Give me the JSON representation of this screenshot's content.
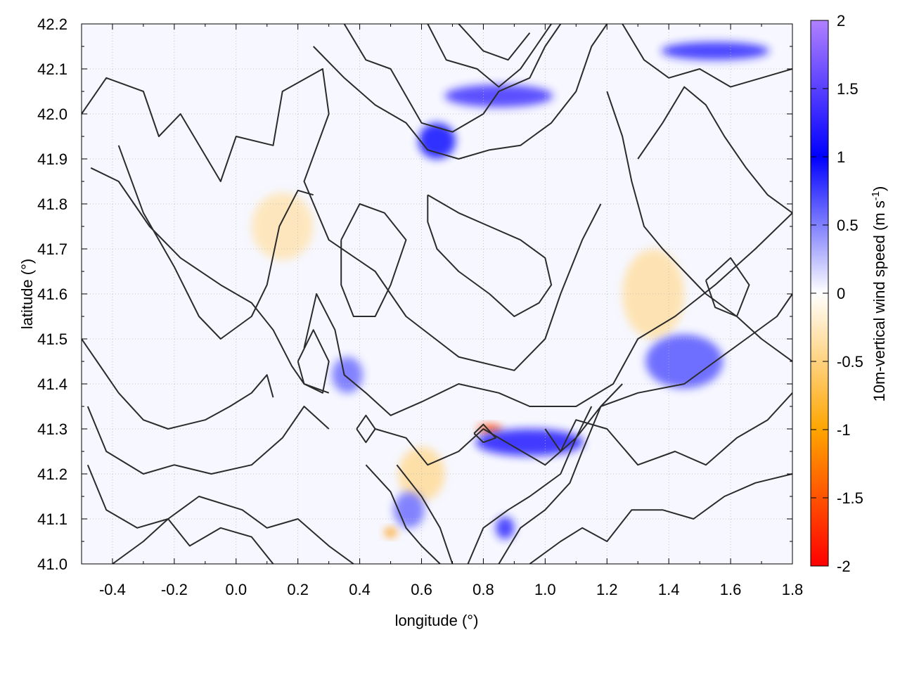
{
  "chart_data": {
    "type": "heatmap",
    "title": "",
    "xlabel": "longitude (°)",
    "ylabel": "latitude (°)",
    "xlim": [
      -0.5,
      1.8
    ],
    "ylim": [
      41.0,
      42.2
    ],
    "x_ticks": [
      "-0.4",
      "-0.2",
      "0.0",
      "0.2",
      "0.4",
      "0.6",
      "0.8",
      "1.0",
      "1.2",
      "1.4",
      "1.6",
      "1.8"
    ],
    "y_ticks": [
      "41.0",
      "41.1",
      "41.2",
      "41.3",
      "41.4",
      "41.5",
      "41.6",
      "41.7",
      "41.8",
      "41.9",
      "42.0",
      "42.1",
      "42.2"
    ],
    "grid": true,
    "colorbar": {
      "label_main": "10m-vertical wind speed (m s",
      "label_sup": "-1",
      "label_end": ")",
      "range": [
        -2,
        2
      ],
      "ticks": [
        "2",
        "1.5",
        "1",
        "0.5",
        "0",
        "-0.5",
        "-1",
        "-1.5",
        "-2"
      ],
      "stops": [
        {
          "value": -2,
          "color": "#ff0000"
        },
        {
          "value": -1,
          "color": "#ffa500"
        },
        {
          "value": 0,
          "color": "#ffffff"
        },
        {
          "value": 1,
          "color": "#0000ff"
        },
        {
          "value": 2,
          "color": "#b080ff"
        }
      ],
      "placement": "right"
    },
    "overlay": "terrain elevation contour lines (black)",
    "patterns": {
      "updraft_regions": [
        {
          "lon": 0.85,
          "lat": 42.04,
          "w": 0.35,
          "h": 0.05,
          "strength": 1.3
        },
        {
          "lon": 0.65,
          "lat": 41.94,
          "w": 0.12,
          "h": 0.08,
          "strength": 1.0
        },
        {
          "lon": 1.55,
          "lat": 42.14,
          "w": 0.35,
          "h": 0.04,
          "strength": 1.2
        },
        {
          "lon": 0.95,
          "lat": 41.27,
          "w": 0.35,
          "h": 0.06,
          "strength": 1.1
        },
        {
          "lon": 0.87,
          "lat": 41.08,
          "w": 0.06,
          "h": 0.05,
          "strength": 1.2
        },
        {
          "lon": 1.45,
          "lat": 41.45,
          "w": 0.25,
          "h": 0.12,
          "strength": 0.7
        },
        {
          "lon": 0.36,
          "lat": 41.42,
          "w": 0.1,
          "h": 0.08,
          "strength": 0.6
        },
        {
          "lon": 0.56,
          "lat": 41.12,
          "w": 0.1,
          "h": 0.08,
          "strength": 0.6
        }
      ],
      "downdraft_regions": [
        {
          "lon": 0.82,
          "lat": 41.3,
          "w": 0.08,
          "h": 0.02,
          "strength": 1.6
        },
        {
          "lon": 0.5,
          "lat": 41.07,
          "w": 0.04,
          "h": 0.02,
          "strength": 1.1
        },
        {
          "lon": 1.35,
          "lat": 41.6,
          "w": 0.2,
          "h": 0.2,
          "strength": 0.35
        },
        {
          "lon": 0.15,
          "lat": 41.75,
          "w": 0.2,
          "h": 0.15,
          "strength": 0.3
        },
        {
          "lon": 0.6,
          "lat": 41.2,
          "w": 0.15,
          "h": 0.12,
          "strength": 0.4
        }
      ]
    },
    "contours": [
      [
        [
          -0.5,
          42.0
        ],
        [
          -0.42,
          42.08
        ],
        [
          -0.3,
          42.05
        ],
        [
          -0.25,
          41.95
        ],
        [
          -0.18,
          42.0
        ],
        [
          -0.05,
          41.85
        ],
        [
          0.0,
          41.95
        ],
        [
          0.12,
          41.93
        ],
        [
          0.15,
          42.05
        ],
        [
          0.28,
          42.1
        ],
        [
          0.3,
          42.0
        ],
        [
          0.22,
          41.85
        ],
        [
          0.3,
          41.72
        ],
        [
          0.45,
          41.65
        ],
        [
          0.55,
          41.55
        ],
        [
          0.72,
          41.46
        ],
        [
          0.9,
          41.43
        ],
        [
          1.0,
          41.5
        ],
        [
          1.05,
          41.6
        ],
        [
          1.12,
          41.72
        ],
        [
          1.18,
          41.8
        ]
      ],
      [
        [
          -0.47,
          41.88
        ],
        [
          -0.38,
          41.85
        ],
        [
          -0.28,
          41.75
        ],
        [
          -0.18,
          41.68
        ],
        [
          -0.05,
          41.62
        ],
        [
          0.05,
          41.58
        ],
        [
          0.12,
          41.52
        ],
        [
          0.18,
          41.44
        ],
        [
          0.22,
          41.4
        ],
        [
          0.3,
          41.38
        ]
      ],
      [
        [
          -0.38,
          41.93
        ],
        [
          -0.3,
          41.78
        ],
        [
          -0.2,
          41.66
        ],
        [
          -0.12,
          41.55
        ],
        [
          -0.05,
          41.5
        ],
        [
          0.05,
          41.55
        ],
        [
          0.1,
          41.62
        ],
        [
          0.14,
          41.75
        ],
        [
          0.2,
          41.83
        ],
        [
          0.25,
          41.82
        ]
      ],
      [
        [
          -0.5,
          41.5
        ],
        [
          -0.45,
          41.45
        ],
        [
          -0.38,
          41.38
        ],
        [
          -0.3,
          41.32
        ],
        [
          -0.22,
          41.3
        ],
        [
          -0.1,
          41.32
        ],
        [
          -0.02,
          41.35
        ],
        [
          0.05,
          41.38
        ],
        [
          0.1,
          41.42
        ],
        [
          0.12,
          41.37
        ]
      ],
      [
        [
          -0.48,
          41.35
        ],
        [
          -0.42,
          41.25
        ],
        [
          -0.3,
          41.2
        ],
        [
          -0.2,
          41.22
        ],
        [
          -0.08,
          41.2
        ],
        [
          0.05,
          41.22
        ],
        [
          0.15,
          41.28
        ],
        [
          0.22,
          41.35
        ],
        [
          0.3,
          41.3
        ]
      ],
      [
        [
          -0.48,
          41.22
        ],
        [
          -0.42,
          41.12
        ],
        [
          -0.32,
          41.08
        ],
        [
          -0.22,
          41.1
        ],
        [
          -0.15,
          41.04
        ],
        [
          -0.05,
          41.08
        ],
        [
          0.05,
          41.06
        ],
        [
          0.12,
          41.0
        ]
      ],
      [
        [
          -0.4,
          41.0
        ],
        [
          -0.3,
          41.05
        ],
        [
          -0.22,
          41.1
        ],
        [
          -0.12,
          41.15
        ],
        [
          0.02,
          41.12
        ],
        [
          0.1,
          41.08
        ],
        [
          0.2,
          41.1
        ],
        [
          0.3,
          41.04
        ],
        [
          0.38,
          41.0
        ]
      ],
      [
        [
          0.22,
          41.48
        ],
        [
          0.26,
          41.6
        ],
        [
          0.32,
          41.52
        ],
        [
          0.35,
          41.42
        ],
        [
          0.42,
          41.38
        ],
        [
          0.5,
          41.33
        ],
        [
          0.6,
          41.36
        ],
        [
          0.72,
          41.4
        ],
        [
          0.85,
          41.38
        ],
        [
          0.95,
          41.35
        ],
        [
          1.1,
          41.35
        ],
        [
          1.22,
          41.4
        ],
        [
          1.3,
          41.5
        ],
        [
          1.42,
          41.55
        ],
        [
          1.55,
          41.62
        ],
        [
          1.68,
          41.7
        ],
        [
          1.8,
          41.78
        ]
      ],
      [
        [
          0.45,
          41.3
        ],
        [
          0.55,
          41.28
        ],
        [
          0.62,
          41.22
        ],
        [
          0.72,
          41.25
        ],
        [
          0.8,
          41.3
        ],
        [
          0.9,
          41.26
        ],
        [
          1.0,
          41.22
        ],
        [
          1.1,
          41.28
        ],
        [
          1.18,
          41.35
        ],
        [
          1.3,
          41.38
        ],
        [
          1.45,
          41.4
        ],
        [
          1.55,
          41.45
        ],
        [
          1.65,
          41.5
        ],
        [
          1.75,
          41.55
        ],
        [
          1.8,
          41.6
        ]
      ],
      [
        [
          0.42,
          41.22
        ],
        [
          0.5,
          41.16
        ],
        [
          0.55,
          41.08
        ],
        [
          0.6,
          41.04
        ],
        [
          0.66,
          41.0
        ]
      ],
      [
        [
          0.52,
          41.22
        ],
        [
          0.6,
          41.15
        ],
        [
          0.66,
          41.08
        ],
        [
          0.7,
          41.0
        ]
      ],
      [
        [
          0.75,
          41.0
        ],
        [
          0.8,
          41.08
        ],
        [
          0.88,
          41.12
        ],
        [
          0.95,
          41.15
        ],
        [
          1.05,
          41.2
        ],
        [
          1.1,
          41.28
        ],
        [
          1.15,
          41.35
        ]
      ],
      [
        [
          0.85,
          41.0
        ],
        [
          0.92,
          41.08
        ],
        [
          1.0,
          41.12
        ],
        [
          1.08,
          41.18
        ],
        [
          1.12,
          41.25
        ],
        [
          1.18,
          41.35
        ],
        [
          1.25,
          41.4
        ]
      ],
      [
        [
          0.95,
          41.0
        ],
        [
          1.05,
          41.05
        ],
        [
          1.12,
          41.08
        ],
        [
          1.2,
          41.05
        ],
        [
          1.28,
          41.12
        ],
        [
          1.38,
          41.12
        ],
        [
          1.48,
          41.1
        ],
        [
          1.58,
          41.15
        ],
        [
          1.68,
          41.18
        ],
        [
          1.8,
          41.2
        ]
      ],
      [
        [
          1.0,
          41.3
        ],
        [
          1.05,
          41.25
        ],
        [
          1.1,
          41.32
        ],
        [
          1.2,
          41.3
        ],
        [
          1.3,
          41.22
        ],
        [
          1.42,
          41.25
        ],
        [
          1.52,
          41.22
        ],
        [
          1.62,
          41.28
        ],
        [
          1.72,
          41.32
        ],
        [
          1.8,
          41.38
        ]
      ],
      [
        [
          0.25,
          42.15
        ],
        [
          0.35,
          42.08
        ],
        [
          0.45,
          42.02
        ],
        [
          0.55,
          41.98
        ],
        [
          0.62,
          41.92
        ],
        [
          0.72,
          41.9
        ],
        [
          0.82,
          41.92
        ],
        [
          0.92,
          41.93
        ],
        [
          1.02,
          41.98
        ],
        [
          1.1,
          42.05
        ],
        [
          1.15,
          42.15
        ],
        [
          1.2,
          42.2
        ]
      ],
      [
        [
          0.35,
          42.2
        ],
        [
          0.42,
          42.12
        ],
        [
          0.5,
          42.1
        ],
        [
          0.55,
          42.04
        ],
        [
          0.6,
          41.98
        ],
        [
          0.7,
          41.96
        ],
        [
          0.8,
          42.0
        ],
        [
          0.85,
          42.05
        ],
        [
          0.95,
          42.08
        ],
        [
          1.0,
          42.15
        ],
        [
          1.05,
          42.2
        ]
      ],
      [
        [
          0.62,
          42.2
        ],
        [
          0.68,
          42.12
        ],
        [
          0.78,
          42.1
        ],
        [
          0.85,
          42.06
        ],
        [
          0.92,
          42.1
        ],
        [
          0.98,
          42.16
        ],
        [
          1.02,
          42.2
        ]
      ],
      [
        [
          0.72,
          42.2
        ],
        [
          0.8,
          42.14
        ],
        [
          0.88,
          42.12
        ],
        [
          0.95,
          42.18
        ]
      ],
      [
        [
          1.25,
          42.2
        ],
        [
          1.32,
          42.12
        ],
        [
          1.4,
          42.08
        ],
        [
          1.5,
          42.1
        ],
        [
          1.6,
          42.06
        ],
        [
          1.7,
          42.08
        ],
        [
          1.8,
          42.1
        ]
      ],
      [
        [
          1.3,
          41.9
        ],
        [
          1.38,
          41.98
        ],
        [
          1.45,
          42.06
        ],
        [
          1.52,
          42.02
        ],
        [
          1.58,
          41.95
        ],
        [
          1.65,
          41.88
        ],
        [
          1.72,
          41.82
        ],
        [
          1.8,
          41.78
        ]
      ],
      [
        [
          1.2,
          42.05
        ],
        [
          1.25,
          41.95
        ],
        [
          1.28,
          41.85
        ],
        [
          1.32,
          41.75
        ],
        [
          1.38,
          41.7
        ],
        [
          1.45,
          41.65
        ],
        [
          1.52,
          41.6
        ],
        [
          1.62,
          41.55
        ],
        [
          1.7,
          41.5
        ],
        [
          1.8,
          41.45
        ]
      ],
      [
        [
          0.62,
          41.82
        ],
        [
          0.72,
          41.78
        ],
        [
          0.82,
          41.75
        ],
        [
          0.92,
          41.72
        ],
        [
          1.0,
          41.68
        ],
        [
          1.02,
          41.62
        ],
        [
          0.98,
          41.58
        ],
        [
          0.9,
          41.55
        ],
        [
          0.82,
          41.6
        ],
        [
          0.72,
          41.65
        ],
        [
          0.65,
          41.7
        ],
        [
          0.62,
          41.76
        ],
        [
          0.62,
          41.82
        ]
      ],
      [
        [
          0.34,
          41.72
        ],
        [
          0.4,
          41.8
        ],
        [
          0.48,
          41.78
        ],
        [
          0.55,
          41.72
        ],
        [
          0.5,
          41.62
        ],
        [
          0.45,
          41.55
        ],
        [
          0.38,
          41.55
        ],
        [
          0.34,
          41.62
        ],
        [
          0.34,
          41.72
        ]
      ],
      [
        [
          0.2,
          41.45
        ],
        [
          0.25,
          41.52
        ],
        [
          0.3,
          41.45
        ],
        [
          0.28,
          41.38
        ],
        [
          0.22,
          41.4
        ],
        [
          0.2,
          41.45
        ]
      ],
      [
        [
          1.52,
          41.63
        ],
        [
          1.6,
          41.68
        ],
        [
          1.66,
          41.62
        ],
        [
          1.62,
          41.55
        ],
        [
          1.55,
          41.57
        ],
        [
          1.52,
          41.63
        ]
      ],
      [
        [
          0.39,
          41.3
        ],
        [
          0.42,
          41.33
        ],
        [
          0.45,
          41.3
        ],
        [
          0.42,
          41.27
        ],
        [
          0.39,
          41.3
        ]
      ],
      [
        [
          0.77,
          41.29
        ],
        [
          0.8,
          41.31
        ],
        [
          0.84,
          41.28
        ],
        [
          0.8,
          41.27
        ],
        [
          0.77,
          41.29
        ]
      ]
    ]
  }
}
